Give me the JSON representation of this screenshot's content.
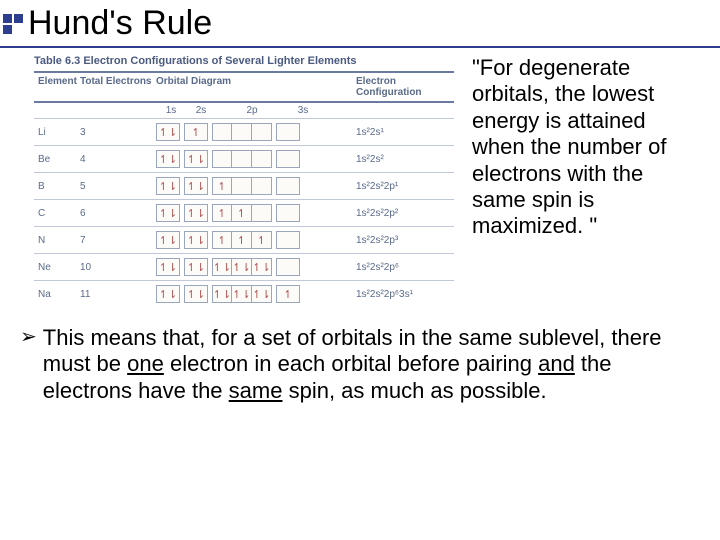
{
  "title": "Hund's Rule",
  "quote": "\"For degenerate orbitals, the lowest energy is attained when the number of electrons with the same spin is maximized. \"",
  "table": {
    "caption": "Table 6.3  Electron Configurations of Several Lighter Elements",
    "headers": {
      "element": "Element",
      "total": "Total Electrons",
      "diagram": "Orbital Diagram",
      "config": "Electron Configuration"
    },
    "subheaders": {
      "s1": "1s",
      "s2": "2s",
      "p2": "2p",
      "s3": "3s"
    },
    "rows": [
      {
        "el": "Li",
        "total": "3",
        "orbitals": {
          "s1": "↿⇂",
          "s2": "↿",
          "p2": [
            "",
            "",
            ""
          ],
          "s3": ""
        },
        "config": "1s²2s¹"
      },
      {
        "el": "Be",
        "total": "4",
        "orbitals": {
          "s1": "↿⇂",
          "s2": "↿⇂",
          "p2": [
            "",
            "",
            ""
          ],
          "s3": ""
        },
        "config": "1s²2s²"
      },
      {
        "el": "B",
        "total": "5",
        "orbitals": {
          "s1": "↿⇂",
          "s2": "↿⇂",
          "p2": [
            "↿",
            "",
            ""
          ],
          "s3": ""
        },
        "config": "1s²2s²2p¹"
      },
      {
        "el": "C",
        "total": "6",
        "orbitals": {
          "s1": "↿⇂",
          "s2": "↿⇂",
          "p2": [
            "↿",
            "↿",
            ""
          ],
          "s3": ""
        },
        "config": "1s²2s²2p²"
      },
      {
        "el": "N",
        "total": "7",
        "orbitals": {
          "s1": "↿⇂",
          "s2": "↿⇂",
          "p2": [
            "↿",
            "↿",
            "↿"
          ],
          "s3": ""
        },
        "config": "1s²2s²2p³"
      },
      {
        "el": "Ne",
        "total": "10",
        "orbitals": {
          "s1": "↿⇂",
          "s2": "↿⇂",
          "p2": [
            "↿⇂",
            "↿⇂",
            "↿⇂"
          ],
          "s3": ""
        },
        "config": "1s²2s²2p⁶"
      },
      {
        "el": "Na",
        "total": "11",
        "orbitals": {
          "s1": "↿⇂",
          "s2": "↿⇂",
          "p2": [
            "↿⇂",
            "↿⇂",
            "↿⇂"
          ],
          "s3": "↿"
        },
        "config": "1s²2s²2p⁶3s¹"
      }
    ]
  },
  "bullet": {
    "marker": "➢",
    "text_parts": {
      "p1": "This means that, for a set of orbitals in the same sublevel, there must be ",
      "u1": "one",
      "p2": " electron in each orbital before pairing ",
      "u2": "and",
      "p3": " the electrons have the ",
      "u3": "same",
      "p4": " spin, as much as possible."
    }
  },
  "colors": {
    "accent": "#2e3e8f",
    "table_border": "#6a7aa0",
    "row_border": "#c0c8d8",
    "orb_border": "#9aa6bc",
    "orb_text": "#b05050",
    "table_text": "#5a6a8a"
  }
}
